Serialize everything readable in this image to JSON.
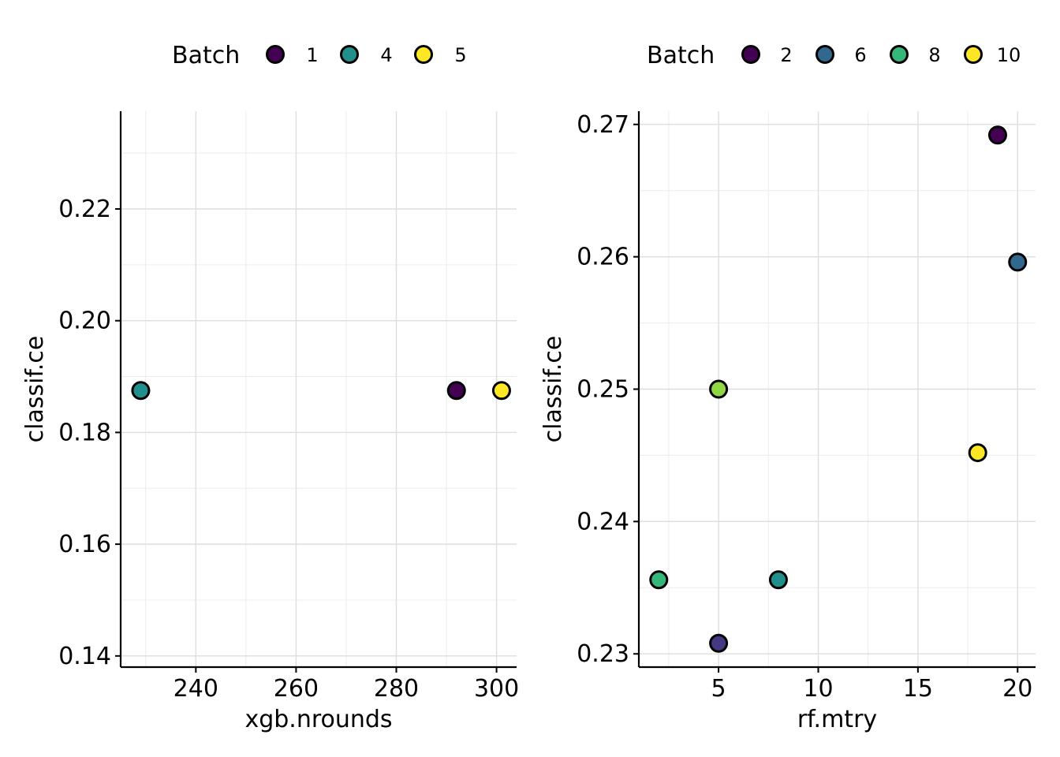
{
  "chart_data": [
    {
      "type": "scatter",
      "xlabel": "xgb.nrounds",
      "ylabel": "classif.ce",
      "xlim": [
        225,
        304
      ],
      "ylim": [
        0.138,
        0.2375
      ],
      "xticks": [
        240,
        260,
        280,
        300
      ],
      "xtick_labels": [
        "240",
        "260",
        "280",
        "300"
      ],
      "yticks": [
        0.14,
        0.16,
        0.18,
        0.2,
        0.22
      ],
      "ytick_labels": [
        "0.14",
        "0.16",
        "0.18",
        "0.20",
        "0.22"
      ],
      "grid": true,
      "legend": {
        "title": "Batch",
        "position": "top",
        "entries": [
          {
            "label": "1",
            "color": "#440154"
          },
          {
            "label": "4",
            "color": "#21908C"
          },
          {
            "label": "5",
            "color": "#FDE725"
          }
        ]
      },
      "points": [
        {
          "x": 229,
          "y": 0.1875,
          "batch": "4",
          "color": "#21908C"
        },
        {
          "x": 292,
          "y": 0.1875,
          "batch": "1",
          "color": "#440154"
        },
        {
          "x": 301,
          "y": 0.1875,
          "batch": "5",
          "color": "#FDE725"
        }
      ]
    },
    {
      "type": "scatter",
      "xlabel": "rf.mtry",
      "ylabel": "classif.ce",
      "xlim": [
        1,
        20.9
      ],
      "ylim": [
        0.229,
        0.271
      ],
      "xticks": [
        5,
        10,
        15,
        20
      ],
      "xtick_labels": [
        "5",
        "10",
        "15",
        "20"
      ],
      "yticks": [
        0.23,
        0.24,
        0.25,
        0.26,
        0.27
      ],
      "ytick_labels": [
        "0.23",
        "0.24",
        "0.25",
        "0.26",
        "0.27"
      ],
      "grid": true,
      "legend": {
        "title": "Batch",
        "position": "top",
        "entries": [
          {
            "label": "2",
            "color": "#440154"
          },
          {
            "label": "6",
            "color": "#31688E"
          },
          {
            "label": "8",
            "color": "#35B779"
          },
          {
            "label": "10",
            "color": "#FDE725"
          }
        ]
      },
      "points": [
        {
          "x": 19,
          "y": 0.2692,
          "color": "#440154"
        },
        {
          "x": 20,
          "y": 0.2596,
          "color": "#31688E"
        },
        {
          "x": 5,
          "y": 0.25,
          "color": "#8FD744"
        },
        {
          "x": 18,
          "y": 0.2452,
          "color": "#FDE725"
        },
        {
          "x": 2,
          "y": 0.2356,
          "color": "#35B779"
        },
        {
          "x": 8,
          "y": 0.2356,
          "color": "#21908C"
        },
        {
          "x": 5,
          "y": 0.2308,
          "color": "#443A83"
        }
      ]
    }
  ]
}
